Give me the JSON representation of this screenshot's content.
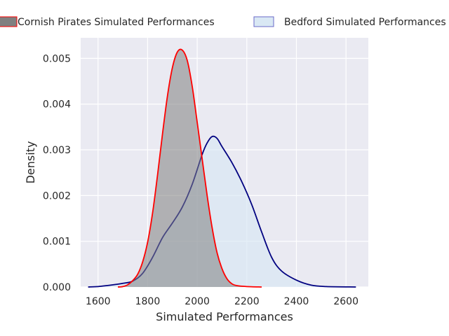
{
  "chart_data": {
    "type": "area",
    "xlabel": "Simulated Performances",
    "ylabel": "Density",
    "xlim": [
      1530,
      2690
    ],
    "ylim": [
      0,
      0.00545
    ],
    "xticks": [
      "1600",
      "1800",
      "2000",
      "2200",
      "2400",
      "2600"
    ],
    "yticks": [
      "0.000",
      "0.001",
      "0.002",
      "0.003",
      "0.004",
      "0.005"
    ],
    "grid": true,
    "legend_position": "top",
    "series": [
      {
        "name": "Cornish Pirates Simulated Performances",
        "fill": "#808080",
        "line": "#ff0000",
        "points": [
          [
            1680,
            0
          ],
          [
            1700,
            1e-05
          ],
          [
            1720,
            5e-05
          ],
          [
            1740,
            0.00014
          ],
          [
            1760,
            0.00028
          ],
          [
            1780,
            0.00055
          ],
          [
            1800,
            0.00098
          ],
          [
            1820,
            0.00162
          ],
          [
            1840,
            0.00245
          ],
          [
            1860,
            0.00335
          ],
          [
            1880,
            0.00418
          ],
          [
            1900,
            0.0048
          ],
          [
            1920,
            0.00514
          ],
          [
            1940,
            0.00518
          ],
          [
            1960,
            0.00495
          ],
          [
            1980,
            0.00438
          ],
          [
            2000,
            0.0036
          ],
          [
            2020,
            0.0028
          ],
          [
            2040,
            0.002
          ],
          [
            2060,
            0.0013
          ],
          [
            2080,
            0.00075
          ],
          [
            2100,
            0.0004
          ],
          [
            2120,
            0.00018
          ],
          [
            2140,
            7e-05
          ],
          [
            2160,
            3e-05
          ],
          [
            2200,
            1e-05
          ],
          [
            2260,
            0
          ]
        ]
      },
      {
        "name": "Bedford Simulated Performances",
        "fill": "#d5e6f3",
        "line": "#000080",
        "points": [
          [
            1560,
            0
          ],
          [
            1600,
            1e-05
          ],
          [
            1650,
            4e-05
          ],
          [
            1700,
            8e-05
          ],
          [
            1740,
            0.00013
          ],
          [
            1780,
            0.0003
          ],
          [
            1820,
            0.00065
          ],
          [
            1860,
            0.00108
          ],
          [
            1900,
            0.0014
          ],
          [
            1940,
            0.00175
          ],
          [
            1980,
            0.00225
          ],
          [
            2020,
            0.0029
          ],
          [
            2040,
            0.00315
          ],
          [
            2060,
            0.00329
          ],
          [
            2080,
            0.00325
          ],
          [
            2100,
            0.00307
          ],
          [
            2140,
            0.00272
          ],
          [
            2180,
            0.0023
          ],
          [
            2220,
            0.0018
          ],
          [
            2260,
            0.0012
          ],
          [
            2300,
            0.00065
          ],
          [
            2340,
            0.00035
          ],
          [
            2400,
            0.00015
          ],
          [
            2460,
            4e-05
          ],
          [
            2520,
            1e-05
          ],
          [
            2640,
            0
          ]
        ]
      }
    ]
  }
}
